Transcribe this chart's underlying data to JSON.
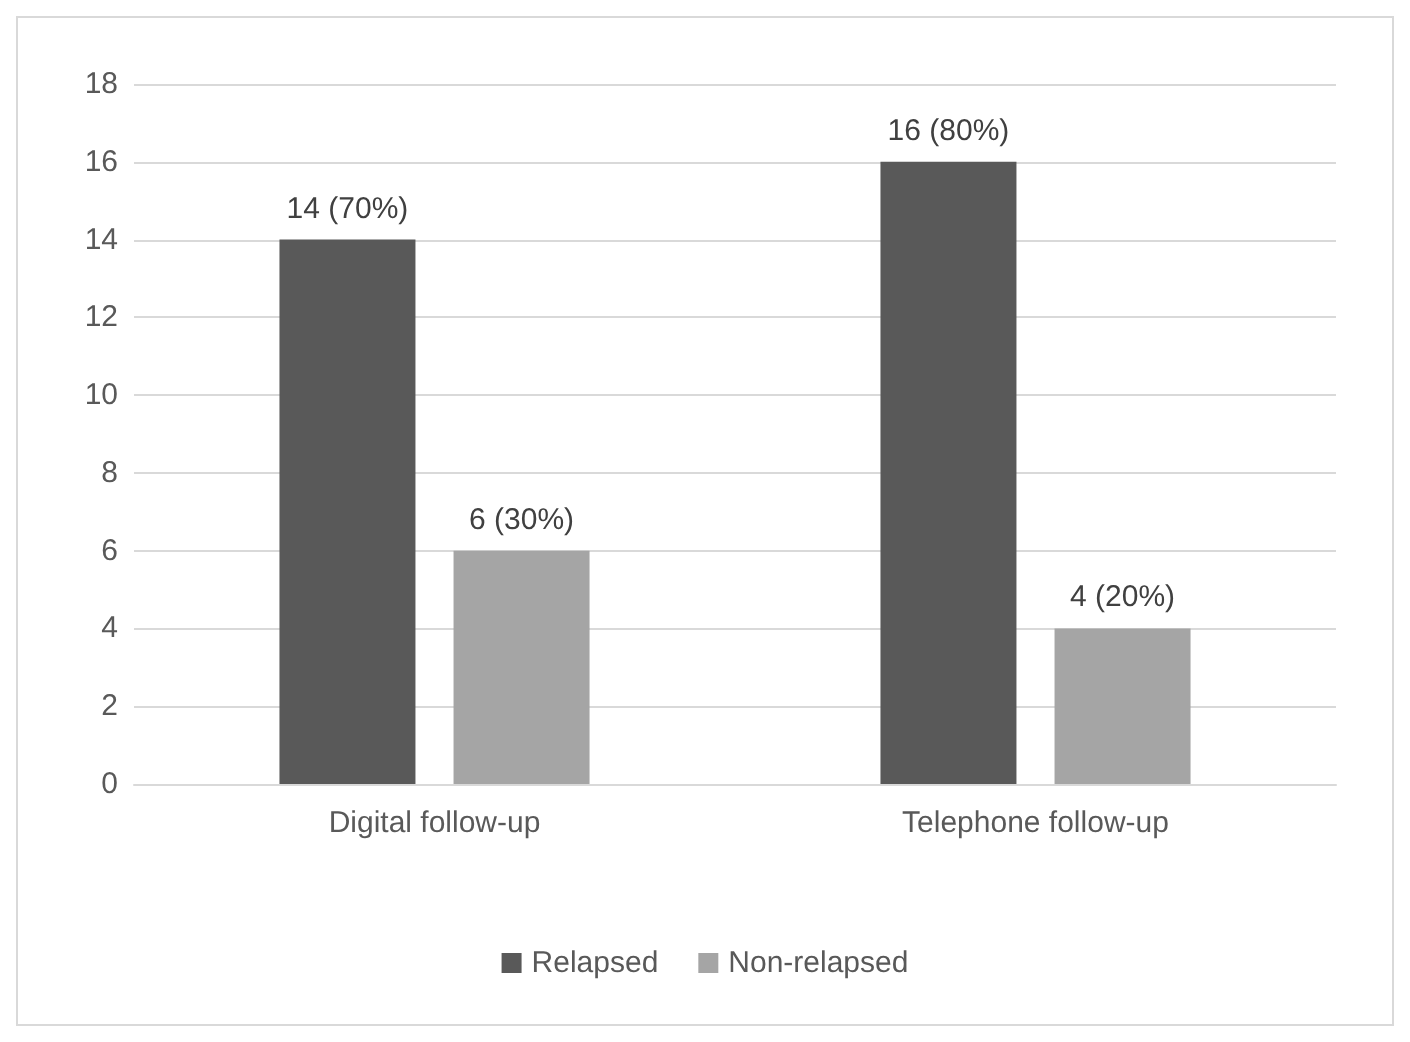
{
  "chart_data": {
    "type": "bar",
    "categories": [
      "Digital follow-up",
      "Telephone follow-up"
    ],
    "series": [
      {
        "name": "Relapsed",
        "color": "#595959",
        "values": [
          14,
          16
        ],
        "value_labels": [
          "14 (70%)",
          "16 (80%)"
        ]
      },
      {
        "name": "Non-relapsed",
        "color": "#a5a5a5",
        "values": [
          6,
          4
        ],
        "value_labels": [
          "6 (30%)",
          "4 (20%)"
        ]
      }
    ],
    "ylim": [
      0,
      18
    ],
    "yticks": [
      0,
      2,
      4,
      6,
      8,
      10,
      12,
      14,
      16,
      18
    ],
    "grid": "y",
    "legend": "bottom"
  }
}
